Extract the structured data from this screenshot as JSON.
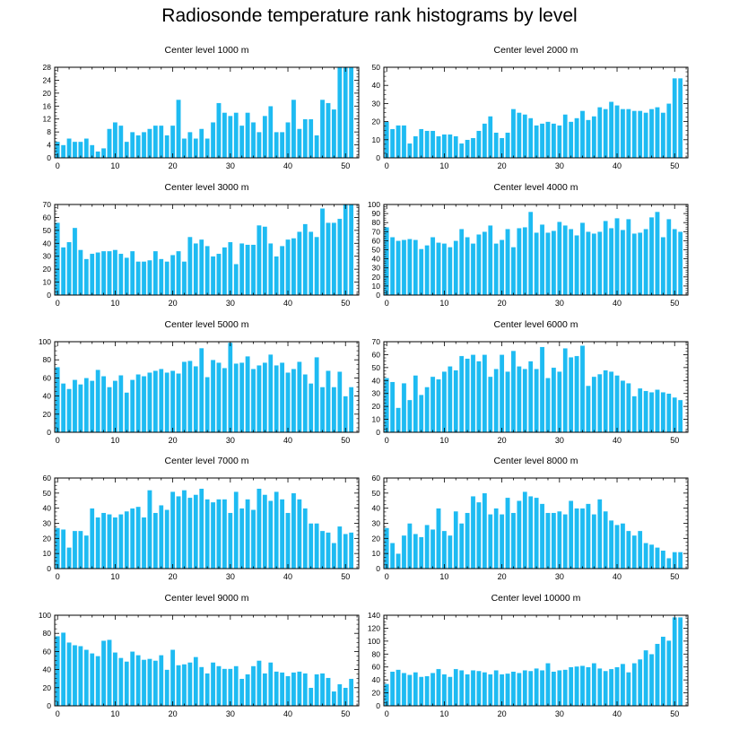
{
  "title": "Radiosonde temperature rank histograms by level",
  "colors": {
    "bar": "#1EBBF2",
    "bar_edge": "#ffffff",
    "axis": "#000000"
  },
  "chart_data": [
    {
      "type": "bar",
      "title": "Center level 1000 m",
      "x": "rank 0-51",
      "ylim": [
        0,
        28
      ],
      "yticks": [
        0,
        4,
        8,
        12,
        16,
        20,
        24,
        28
      ],
      "xticks": [
        0,
        10,
        20,
        30,
        40,
        50
      ],
      "grid": false,
      "values": [
        5,
        4,
        6,
        5,
        5,
        6,
        4,
        2,
        3,
        9,
        11,
        10,
        5,
        8,
        7,
        8,
        9,
        10,
        10,
        7,
        10,
        18,
        6,
        8,
        6,
        9,
        6,
        11,
        17,
        14,
        13,
        14,
        10,
        14,
        11,
        8,
        13,
        16,
        8,
        8,
        11,
        18,
        9,
        12,
        12,
        7,
        18,
        17,
        15,
        28,
        28,
        28
      ]
    },
    {
      "type": "bar",
      "title": "Center level 2000 m",
      "x": "rank 0-51",
      "ylim": [
        0,
        50
      ],
      "yticks": [
        0,
        10,
        20,
        30,
        40,
        50
      ],
      "xticks": [
        0,
        10,
        20,
        30,
        40,
        50
      ],
      "grid": false,
      "values": [
        20,
        16,
        18,
        18,
        8,
        12,
        16,
        15,
        15,
        12,
        13,
        13,
        12,
        8,
        10,
        11,
        15,
        19,
        23,
        14,
        11,
        14,
        27,
        25,
        24,
        22,
        18,
        19,
        20,
        19,
        18,
        24,
        20,
        22,
        26,
        21,
        23,
        28,
        27,
        31,
        29,
        27,
        27,
        26,
        26,
        25,
        27,
        28,
        25,
        30,
        44,
        44
      ]
    },
    {
      "type": "bar",
      "title": "Center level 3000 m",
      "x": "rank 0-51",
      "ylim": [
        0,
        70
      ],
      "yticks": [
        0,
        10,
        20,
        30,
        40,
        50,
        60,
        70
      ],
      "xticks": [
        0,
        10,
        20,
        30,
        40,
        50
      ],
      "grid": false,
      "values": [
        56,
        37,
        41,
        52,
        35,
        28,
        32,
        33,
        34,
        34,
        35,
        32,
        29,
        34,
        26,
        26,
        27,
        34,
        28,
        26,
        31,
        34,
        26,
        45,
        40,
        43,
        38,
        30,
        32,
        37,
        41,
        24,
        40,
        39,
        39,
        54,
        53,
        40,
        30,
        38,
        43,
        44,
        49,
        55,
        49,
        45,
        67,
        56,
        56,
        59,
        70,
        70
      ]
    },
    {
      "type": "bar",
      "title": "Center level 4000 m",
      "x": "rank 0-51",
      "ylim": [
        0,
        100
      ],
      "yticks": [
        0,
        10,
        20,
        30,
        40,
        50,
        60,
        70,
        80,
        90,
        100
      ],
      "xticks": [
        0,
        10,
        20,
        30,
        40,
        50
      ],
      "grid": false,
      "values": [
        75,
        64,
        60,
        61,
        62,
        61,
        51,
        55,
        64,
        58,
        57,
        53,
        60,
        73,
        64,
        57,
        67,
        70,
        77,
        57,
        61,
        73,
        53,
        74,
        75,
        92,
        69,
        78,
        69,
        71,
        81,
        77,
        73,
        66,
        80,
        70,
        68,
        70,
        82,
        74,
        85,
        72,
        84,
        68,
        69,
        73,
        86,
        92,
        64,
        84,
        73,
        70
      ]
    },
    {
      "type": "bar",
      "title": "Center level 5000 m",
      "x": "rank 0-51",
      "ylim": [
        0,
        100
      ],
      "yticks": [
        0,
        20,
        40,
        60,
        80,
        100
      ],
      "xticks": [
        0,
        10,
        20,
        30,
        40,
        50
      ],
      "grid": false,
      "values": [
        72,
        54,
        48,
        58,
        53,
        60,
        57,
        69,
        62,
        50,
        57,
        63,
        44,
        58,
        64,
        62,
        66,
        68,
        70,
        66,
        68,
        65,
        78,
        79,
        73,
        93,
        61,
        80,
        77,
        71,
        99,
        76,
        77,
        84,
        70,
        74,
        77,
        86,
        74,
        77,
        66,
        70,
        78,
        64,
        54,
        83,
        50,
        68,
        50,
        67,
        40,
        50
      ]
    },
    {
      "type": "bar",
      "title": "Center level 6000 m",
      "x": "rank 0-51",
      "ylim": [
        0,
        70
      ],
      "yticks": [
        0,
        10,
        20,
        30,
        40,
        50,
        60,
        70
      ],
      "xticks": [
        0,
        10,
        20,
        30,
        40,
        50
      ],
      "grid": false,
      "values": [
        42,
        39,
        19,
        38,
        25,
        44,
        29,
        35,
        43,
        41,
        47,
        51,
        48,
        59,
        57,
        60,
        55,
        60,
        43,
        49,
        60,
        47,
        63,
        51,
        49,
        55,
        49,
        66,
        42,
        50,
        47,
        65,
        58,
        59,
        67,
        36,
        43,
        45,
        48,
        47,
        44,
        40,
        38,
        28,
        34,
        32,
        31,
        33,
        31,
        30,
        27,
        25
      ]
    },
    {
      "type": "bar",
      "title": "Center level 7000 m",
      "x": "rank 0-51",
      "ylim": [
        0,
        60
      ],
      "yticks": [
        0,
        10,
        20,
        30,
        40,
        50,
        60
      ],
      "xticks": [
        0,
        10,
        20,
        30,
        40,
        50
      ],
      "grid": false,
      "values": [
        27,
        26,
        14,
        25,
        25,
        22,
        40,
        34,
        37,
        36,
        34,
        36,
        38,
        40,
        41,
        34,
        52,
        37,
        42,
        39,
        51,
        48,
        52,
        47,
        49,
        53,
        46,
        44,
        46,
        46,
        37,
        51,
        40,
        46,
        39,
        53,
        49,
        45,
        51,
        46,
        37,
        50,
        46,
        40,
        30,
        30,
        25,
        24,
        17,
        28,
        23,
        24
      ]
    },
    {
      "type": "bar",
      "title": "Center level 8000 m",
      "x": "rank 0-51",
      "ylim": [
        0,
        60
      ],
      "yticks": [
        0,
        10,
        20,
        30,
        40,
        50,
        60
      ],
      "xticks": [
        0,
        10,
        20,
        30,
        40,
        50
      ],
      "grid": false,
      "values": [
        27,
        17,
        10,
        22,
        30,
        23,
        21,
        29,
        26,
        40,
        25,
        22,
        38,
        30,
        37,
        48,
        44,
        50,
        36,
        40,
        36,
        47,
        37,
        45,
        51,
        48,
        47,
        43,
        37,
        37,
        38,
        36,
        45,
        40,
        40,
        43,
        36,
        46,
        38,
        32,
        29,
        30,
        25,
        22,
        25,
        17,
        16,
        14,
        12,
        7,
        11,
        11
      ]
    },
    {
      "type": "bar",
      "title": "Center level 9000 m",
      "x": "rank 0-51",
      "ylim": [
        0,
        100
      ],
      "yticks": [
        0,
        20,
        40,
        60,
        80,
        100
      ],
      "xticks": [
        0,
        10,
        20,
        30,
        40,
        50
      ],
      "grid": false,
      "values": [
        77,
        81,
        70,
        67,
        66,
        62,
        58,
        55,
        72,
        73,
        59,
        53,
        49,
        60,
        56,
        51,
        52,
        50,
        56,
        40,
        62,
        45,
        46,
        48,
        54,
        43,
        36,
        48,
        44,
        41,
        41,
        44,
        30,
        35,
        44,
        50,
        36,
        48,
        38,
        37,
        33,
        37,
        38,
        36,
        20,
        35,
        36,
        31,
        16,
        24,
        20,
        30
      ]
    },
    {
      "type": "bar",
      "title": "Center level 10000 m",
      "x": "rank 0-51",
      "ylim": [
        0,
        140
      ],
      "yticks": [
        0,
        20,
        40,
        60,
        80,
        100,
        120,
        140
      ],
      "xticks": [
        0,
        10,
        20,
        30,
        40,
        50
      ],
      "grid": false,
      "values": [
        34,
        53,
        56,
        51,
        48,
        52,
        45,
        46,
        51,
        57,
        49,
        45,
        57,
        55,
        49,
        55,
        54,
        52,
        49,
        55,
        49,
        50,
        53,
        51,
        55,
        54,
        58,
        55,
        66,
        53,
        55,
        56,
        60,
        61,
        62,
        60,
        66,
        58,
        54,
        57,
        60,
        65,
        52,
        66,
        72,
        86,
        80,
        96,
        107,
        101,
        137,
        137
      ]
    }
  ]
}
